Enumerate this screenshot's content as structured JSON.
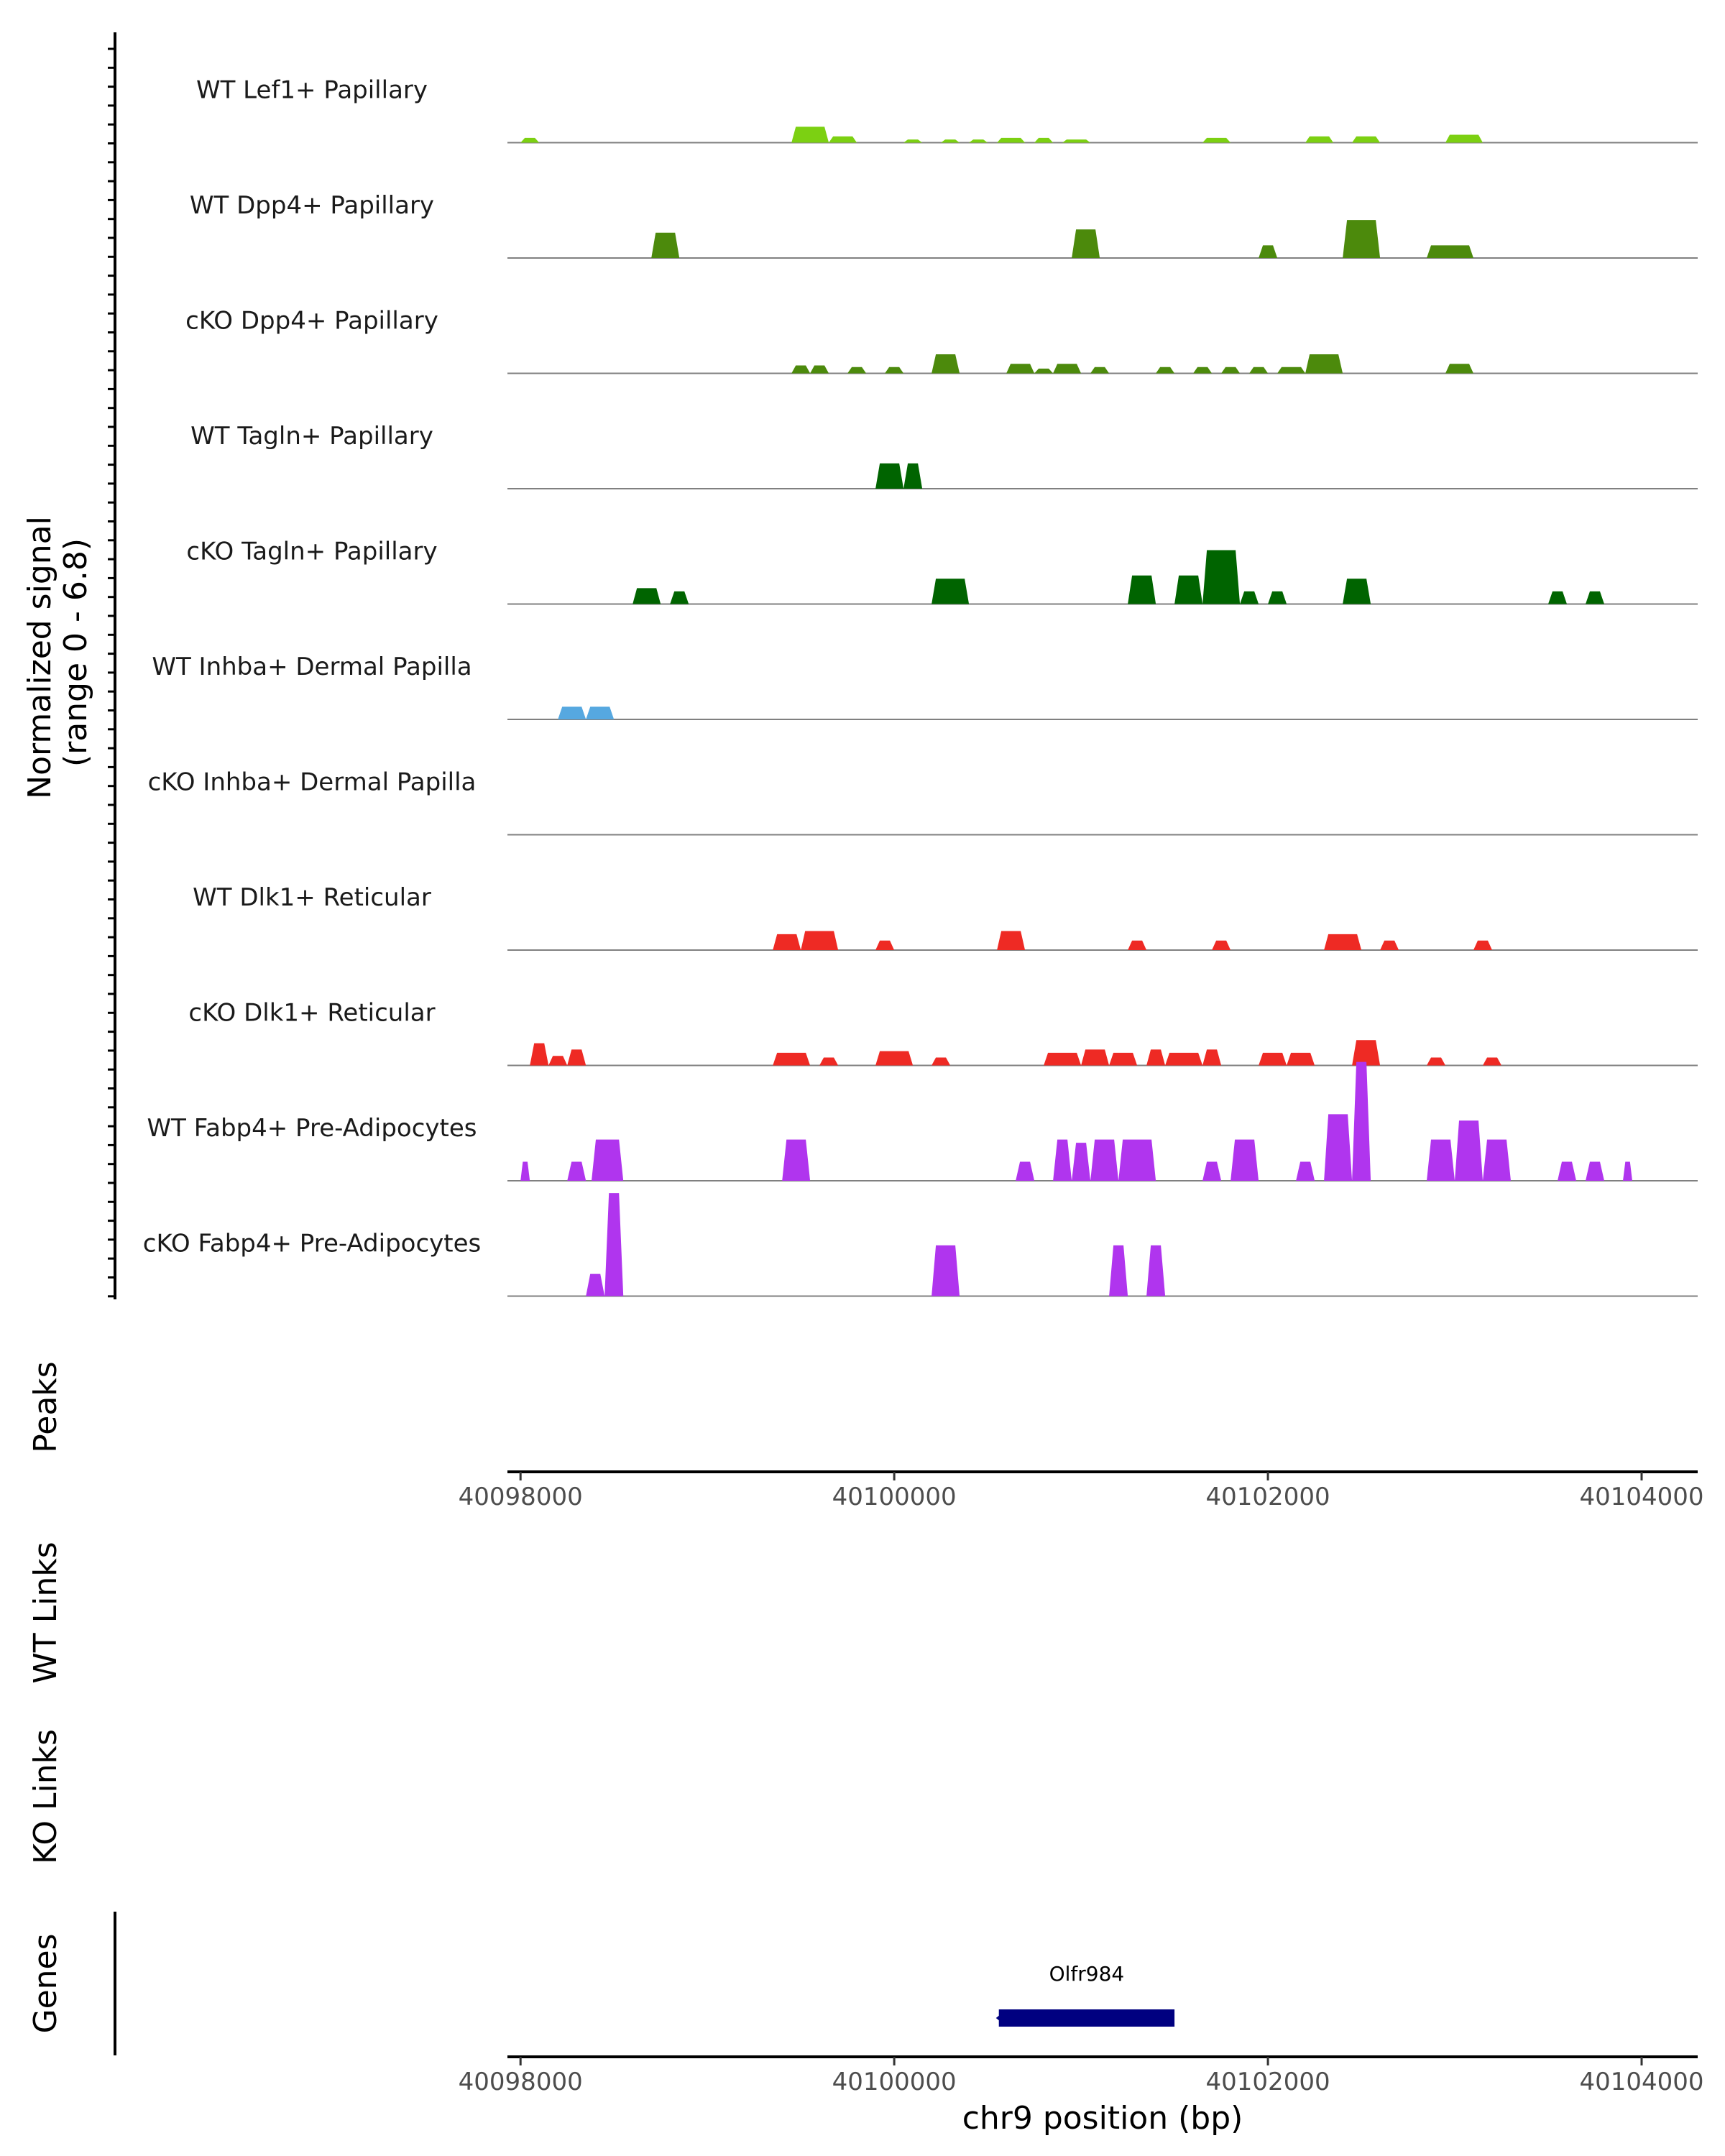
{
  "chart_data": {
    "type": "area",
    "title": "",
    "chromosome": "chr9",
    "xlabel": "chr9 position (bp)",
    "xlim": [
      40097930,
      40104300
    ],
    "ylim": [
      0,
      6.8
    ],
    "ylabel_line1": "Normalized signal",
    "ylabel_line2": "(range 0 - 6.8)",
    "x_ticks": [
      40098000,
      40100000,
      40102000,
      40104000
    ],
    "x_tick_labels": [
      "40098000",
      "40100000",
      "40102000",
      "40104000"
    ],
    "side_labels": {
      "peaks": "Peaks",
      "wt_links": "WT Links",
      "ko_links": "KO Links",
      "genes": "Genes"
    },
    "genes": [
      {
        "name": "Olfr984",
        "start": 40100560,
        "end": 40101500,
        "color": "#000080"
      }
    ],
    "tracks": [
      {
        "name": "WT Lef1+ Papillary",
        "color": "#7CD012",
        "peaks": [
          [
            40098000,
            40098100,
            0.3
          ],
          [
            40099450,
            40099650,
            1.0
          ],
          [
            40099650,
            40099800,
            0.4
          ],
          [
            40100050,
            40100150,
            0.2
          ],
          [
            40100250,
            40100350,
            0.2
          ],
          [
            40100400,
            40100500,
            0.2
          ],
          [
            40100550,
            40100700,
            0.3
          ],
          [
            40100750,
            40100850,
            0.3
          ],
          [
            40100900,
            40101050,
            0.2
          ],
          [
            40101650,
            40101800,
            0.3
          ],
          [
            40102200,
            40102350,
            0.4
          ],
          [
            40102450,
            40102600,
            0.4
          ],
          [
            40102950,
            40103150,
            0.5
          ]
        ]
      },
      {
        "name": "WT Dpp4+ Papillary",
        "color": "#4C8A0C",
        "peaks": [
          [
            40098700,
            40098850,
            1.6
          ],
          [
            40100950,
            40101100,
            1.8
          ],
          [
            40101950,
            40102050,
            0.8
          ],
          [
            40102400,
            40102600,
            2.4
          ],
          [
            40102850,
            40103100,
            0.8
          ]
        ]
      },
      {
        "name": "cKO Dpp4+ Papillary",
        "color": "#4C8A0C",
        "peaks": [
          [
            40099450,
            40099550,
            0.5
          ],
          [
            40099550,
            40099650,
            0.5
          ],
          [
            40099750,
            40099850,
            0.4
          ],
          [
            40099950,
            40100050,
            0.4
          ],
          [
            40100200,
            40100350,
            1.2
          ],
          [
            40100600,
            40100750,
            0.6
          ],
          [
            40100750,
            40100850,
            0.3
          ],
          [
            40100850,
            40101000,
            0.6
          ],
          [
            40101050,
            40101150,
            0.4
          ],
          [
            40101400,
            40101500,
            0.4
          ],
          [
            40101600,
            40101700,
            0.4
          ],
          [
            40101750,
            40101850,
            0.4
          ],
          [
            40101900,
            40102000,
            0.4
          ],
          [
            40102050,
            40102200,
            0.4
          ],
          [
            40102200,
            40102400,
            1.2
          ],
          [
            40102950,
            40103100,
            0.6
          ]
        ]
      },
      {
        "name": "WT Tagln+ Papillary",
        "color": "#006400",
        "peaks": [
          [
            40099900,
            40100050,
            1.6
          ],
          [
            40100050,
            40100150,
            1.6
          ]
        ]
      },
      {
        "name": "cKO Tagln+ Papillary",
        "color": "#006400",
        "peaks": [
          [
            40098600,
            40098750,
            1.0
          ],
          [
            40098800,
            40098900,
            0.8
          ],
          [
            40100200,
            40100400,
            1.6
          ],
          [
            40101250,
            40101400,
            1.8
          ],
          [
            40101500,
            40101650,
            1.8
          ],
          [
            40101650,
            40101850,
            3.4
          ],
          [
            40101850,
            40101950,
            0.8
          ],
          [
            40102000,
            40102100,
            0.8
          ],
          [
            40102400,
            40102550,
            1.6
          ],
          [
            40103500,
            40103600,
            0.8
          ],
          [
            40103700,
            40103800,
            0.8
          ]
        ]
      },
      {
        "name": "WT Inhba+ Dermal Papilla",
        "color": "#56A8E0",
        "peaks": [
          [
            40098200,
            40098350,
            0.8
          ],
          [
            40098350,
            40098500,
            0.8
          ]
        ]
      },
      {
        "name": "cKO Inhba+ Dermal Papilla",
        "color": "#56A8E0",
        "peaks": []
      },
      {
        "name": "WT Dlk1+ Reticular",
        "color": "#EE2A24",
        "peaks": [
          [
            40099350,
            40099500,
            1.0
          ],
          [
            40099500,
            40099700,
            1.2
          ],
          [
            40099900,
            40100000,
            0.6
          ],
          [
            40100550,
            40100700,
            1.2
          ],
          [
            40101250,
            40101350,
            0.6
          ],
          [
            40101700,
            40101800,
            0.6
          ],
          [
            40102300,
            40102500,
            1.0
          ],
          [
            40102600,
            40102700,
            0.6
          ],
          [
            40103100,
            40103200,
            0.6
          ]
        ]
      },
      {
        "name": "cKO Dlk1+ Reticular",
        "color": "#EE2A24",
        "peaks": [
          [
            40098050,
            40098150,
            1.4
          ],
          [
            40098150,
            40098250,
            0.6
          ],
          [
            40098250,
            40098350,
            1.0
          ],
          [
            40099350,
            40099550,
            0.8
          ],
          [
            40099600,
            40099700,
            0.5
          ],
          [
            40099900,
            40100100,
            0.9
          ],
          [
            40100200,
            40100300,
            0.5
          ],
          [
            40100800,
            40101000,
            0.8
          ],
          [
            40101000,
            40101150,
            1.0
          ],
          [
            40101150,
            40101300,
            0.8
          ],
          [
            40101350,
            40101450,
            1.0
          ],
          [
            40101450,
            40101650,
            0.8
          ],
          [
            40101650,
            40101750,
            1.0
          ],
          [
            40101950,
            40102100,
            0.8
          ],
          [
            40102100,
            40102250,
            0.8
          ],
          [
            40102450,
            40102600,
            1.6
          ],
          [
            40102850,
            40102950,
            0.5
          ],
          [
            40103150,
            40103250,
            0.5
          ]
        ]
      },
      {
        "name": "WT Fabp4+ Pre-Adipocytes",
        "color": "#B035EE",
        "peaks": [
          [
            40098000,
            40098050,
            1.2
          ],
          [
            40098250,
            40098350,
            1.2
          ],
          [
            40098380,
            40098550,
            2.6
          ],
          [
            40099400,
            40099550,
            2.6
          ],
          [
            40100650,
            40100750,
            1.2
          ],
          [
            40100850,
            40100950,
            2.6
          ],
          [
            40100950,
            40101050,
            2.4
          ],
          [
            40101050,
            40101200,
            2.6
          ],
          [
            40101200,
            40101400,
            2.6
          ],
          [
            40101650,
            40101750,
            1.2
          ],
          [
            40101800,
            40101950,
            2.6
          ],
          [
            40102150,
            40102250,
            1.2
          ],
          [
            40102300,
            40102450,
            4.2
          ],
          [
            40102450,
            40102550,
            7.5
          ],
          [
            40102850,
            40103000,
            2.6
          ],
          [
            40103000,
            40103150,
            3.8
          ],
          [
            40103150,
            40103300,
            2.6
          ],
          [
            40103550,
            40103650,
            1.2
          ],
          [
            40103700,
            40103800,
            1.2
          ],
          [
            40103900,
            40103950,
            1.2
          ]
        ]
      },
      {
        "name": "cKO Fabp4+ Pre-Adipocytes",
        "color": "#B035EE",
        "peaks": [
          [
            40098350,
            40098450,
            1.4
          ],
          [
            40098450,
            40098550,
            6.5
          ],
          [
            40100200,
            40100350,
            3.2
          ],
          [
            40101150,
            40101250,
            3.2
          ],
          [
            40101350,
            40101450,
            3.2
          ]
        ]
      }
    ]
  }
}
